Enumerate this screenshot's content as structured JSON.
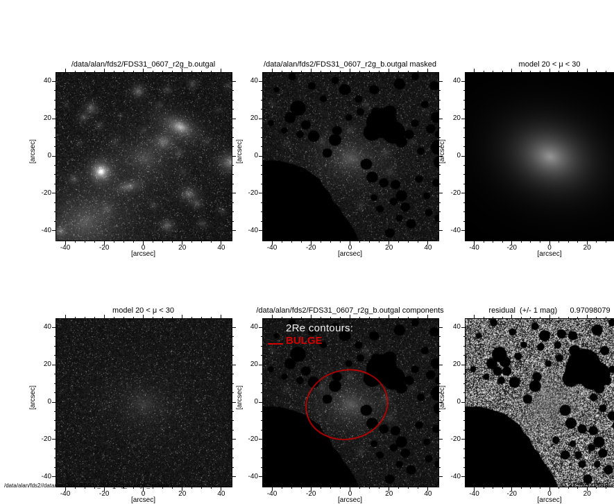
{
  "figure": {
    "footer_path": "/data/alan/fds2//data/alan/fds2/FDS31_0607_r2g_b.outgal_residual2",
    "timestamp": "Mon Nov 11 21:59:33 2019",
    "background": "#ffffff",
    "annotation_red": "#d40000"
  },
  "masks_common": {
    "circles": [
      [
        16,
        18,
        8
      ],
      [
        22,
        13,
        6
      ],
      [
        11,
        13,
        4.5
      ],
      [
        26,
        8,
        3
      ],
      [
        30,
        12,
        2.5
      ],
      [
        20,
        24,
        3.5
      ],
      [
        13,
        24,
        2.5
      ],
      [
        -27,
        26,
        4
      ],
      [
        -31,
        21,
        3
      ],
      [
        -23,
        17,
        2.5
      ],
      [
        -19,
        11,
        3
      ],
      [
        -26,
        12,
        2
      ],
      [
        -8,
        9,
        3.2
      ],
      [
        -7,
        14,
        2.5
      ],
      [
        -12,
        2,
        2.5
      ],
      [
        -3,
        36,
        3
      ],
      [
        -8,
        41,
        2
      ],
      [
        4,
        31,
        2
      ],
      [
        12,
        36,
        2.5
      ],
      [
        25,
        39,
        3
      ],
      [
        33,
        43,
        2
      ],
      [
        43,
        38,
        2.5
      ],
      [
        -14,
        31,
        1.8
      ],
      [
        -20,
        38,
        2
      ],
      [
        -30,
        43,
        2
      ],
      [
        -38,
        36,
        1.5
      ],
      [
        44,
        21,
        3
      ],
      [
        41,
        15,
        2.5
      ],
      [
        45,
        5,
        4
      ],
      [
        46,
        -3,
        3.5
      ],
      [
        38,
        28,
        2
      ],
      [
        36,
        3,
        2
      ],
      [
        33,
        18,
        2
      ],
      [
        45,
        12,
        2
      ],
      [
        8,
        -4,
        3
      ],
      [
        11,
        -11,
        3
      ],
      [
        17,
        -14,
        2.5
      ],
      [
        23,
        -15,
        2.5
      ],
      [
        26,
        -21,
        3
      ],
      [
        22,
        -24,
        2
      ],
      [
        28,
        -27,
        2.5
      ],
      [
        15,
        -28,
        2
      ],
      [
        31,
        -36,
        2.5
      ],
      [
        40,
        -30,
        2
      ],
      [
        35,
        -12,
        2
      ],
      [
        44,
        -14,
        2.2
      ],
      [
        20,
        -41,
        2.5
      ],
      [
        12,
        -22,
        1.8
      ],
      [
        25,
        -33,
        1.8
      ],
      [
        39,
        -21,
        1.8
      ],
      [
        45,
        -33,
        2
      ],
      [
        5,
        24,
        2
      ],
      [
        -1,
        21,
        1.8
      ],
      [
        -34,
        14,
        1.7
      ],
      [
        -41,
        18,
        1.6
      ]
    ],
    "polygons": [
      [
        [
          -45,
          -2
        ],
        [
          -37,
          -2
        ],
        [
          -30,
          -4
        ],
        [
          -24,
          -6
        ],
        [
          -20,
          -9
        ],
        [
          -16,
          -12
        ],
        [
          -14,
          -16
        ],
        [
          -11,
          -19
        ],
        [
          -9,
          -24
        ],
        [
          -6,
          -27
        ],
        [
          -4,
          -31
        ],
        [
          -1,
          -35
        ],
        [
          1,
          -38
        ],
        [
          3,
          -42
        ],
        [
          4,
          -45
        ],
        [
          -45,
          -45
        ]
      ]
    ]
  },
  "chart_data": [
    {
      "type": "heatmap",
      "panel": "observed",
      "title": "/data/alan/fds2/FDS31_0607_r2g_b.outgal",
      "xlabel": "[arcsec]",
      "ylabel": "[arcsec]",
      "xlim": [
        -45,
        45
      ],
      "ylim": [
        -45,
        45
      ],
      "x_ticks": [
        -40,
        -20,
        0,
        20,
        40
      ],
      "y_ticks": [
        -40,
        -20,
        0,
        20,
        40
      ],
      "minor_tick_step": 5,
      "render": {
        "noise": "dark",
        "seed": 101,
        "sources": [
          [
            -30,
            -35,
            70,
            17,
            13,
            25,
            1.1
          ],
          [
            0,
            -1,
            38,
            13,
            10,
            -10,
            1.2
          ],
          [
            0,
            -1,
            20,
            4.5,
            4,
            0,
            1.4
          ],
          [
            -22,
            -8,
            225,
            2.3,
            2.3,
            0,
            1.1
          ],
          [
            -22,
            -8,
            45,
            5.5,
            5.5,
            0,
            1.6
          ],
          [
            18,
            16,
            110,
            7,
            3.6,
            -28,
            1.15
          ],
          [
            19,
            16,
            70,
            2.6,
            2.2,
            -28,
            1.3
          ],
          [
            10,
            8,
            85,
            3.8,
            3.2,
            0,
            1.2
          ],
          [
            45,
            -3,
            120,
            4.5,
            3.5,
            0,
            1.2
          ],
          [
            -8,
            -16,
            80,
            4.5,
            2.2,
            12,
            1.25
          ],
          [
            -27,
            26,
            75,
            2.4,
            2.4,
            0,
            1.3
          ],
          [
            -31,
            21,
            55,
            2,
            2,
            0,
            1.3
          ],
          [
            -23,
            17,
            40,
            1.7,
            1.7,
            0,
            1.3
          ],
          [
            -3,
            35,
            85,
            2.4,
            2.4,
            0,
            1.3
          ],
          [
            12,
            36,
            45,
            1.7,
            1.7,
            0,
            1.3
          ],
          [
            25,
            39,
            50,
            1.9,
            1.9,
            0,
            1.3
          ],
          [
            43,
            38,
            40,
            1.6,
            1.6,
            0,
            1.3
          ],
          [
            23,
            -20,
            85,
            3,
            2.6,
            0,
            1.2
          ],
          [
            27,
            -25,
            55,
            2,
            2,
            0,
            1.3
          ],
          [
            12,
            -37,
            75,
            2.6,
            2.3,
            0,
            1.25
          ],
          [
            30,
            -36,
            45,
            1.8,
            1.8,
            0,
            1.3
          ],
          [
            40,
            -29,
            40,
            1.6,
            1.6,
            0,
            1.3
          ],
          [
            -36,
            -12,
            50,
            2,
            2,
            0,
            1.3
          ],
          [
            -43,
            -40,
            65,
            2.3,
            2.3,
            0,
            1.3
          ],
          [
            5,
            -26,
            35,
            1.6,
            1.6,
            0,
            1.3
          ],
          [
            -15,
            8,
            30,
            1.6,
            1.6,
            0,
            1.4
          ],
          [
            8,
            28,
            32,
            1.6,
            1.6,
            0,
            1.4
          ],
          [
            32,
            8,
            28,
            1.5,
            1.5,
            0,
            1.4
          ],
          [
            -33,
            7,
            26,
            1.5,
            1.5,
            0,
            1.4
          ],
          [
            18,
            2,
            35,
            2,
            2,
            0,
            1.4
          ],
          [
            38,
            25,
            26,
            1.5,
            1.5,
            0,
            1.4
          ],
          [
            -40,
            28,
            26,
            1.5,
            1.5,
            0,
            1.4
          ],
          [
            0,
            14,
            26,
            1.7,
            1.7,
            0,
            1.5
          ],
          [
            -19,
            -28,
            30,
            2.5,
            2.5,
            0,
            1.3
          ],
          [
            20,
            -8,
            30,
            1.8,
            1.8,
            0,
            1.4
          ],
          [
            -12,
            22,
            24,
            1.5,
            1.5,
            0,
            1.4
          ]
        ]
      }
    },
    {
      "type": "heatmap",
      "panel": "masked",
      "title": "/data/alan/fds2/FDS31_0607_r2g_b.outgal masked",
      "xlabel": "[arcsec]",
      "ylabel": "[arcsec]",
      "xlim": [
        -45,
        45
      ],
      "ylim": [
        -45,
        45
      ],
      "x_ticks": [
        -40,
        -20,
        0,
        20,
        40
      ],
      "y_ticks": [
        -40,
        -20,
        0,
        20,
        40
      ],
      "minor_tick_step": 5,
      "render": {
        "noise": "dark",
        "seed": 202,
        "masks_ref": true,
        "sources": [
          [
            0,
            -1,
            48,
            13,
            10,
            -10,
            1.2
          ],
          [
            0,
            -1,
            24,
            4.5,
            4,
            0,
            1.4
          ],
          [
            -15,
            8,
            30,
            1.6,
            1.6,
            0,
            1.4
          ],
          [
            8,
            28,
            32,
            1.6,
            1.6,
            0,
            1.4
          ],
          [
            18,
            2,
            30,
            2,
            2,
            0,
            1.4
          ],
          [
            0,
            14,
            26,
            1.7,
            1.7,
            0,
            1.5
          ],
          [
            32,
            8,
            24,
            1.5,
            1.5,
            0,
            1.4
          ],
          [
            -33,
            7,
            24,
            1.5,
            1.5,
            0,
            1.4
          ],
          [
            38,
            25,
            22,
            1.5,
            1.5,
            0,
            1.4
          ],
          [
            -40,
            28,
            22,
            1.5,
            1.5,
            0,
            1.4
          ],
          [
            5,
            -26,
            30,
            1.6,
            1.6,
            0,
            1.3
          ],
          [
            20,
            -8,
            26,
            1.8,
            1.8,
            0,
            1.4
          ]
        ]
      }
    },
    {
      "type": "heatmap",
      "panel": "model-smooth",
      "title": "model 20 < μ < 30",
      "xlabel": "[arcsec]",
      "ylabel": "[arcsec]",
      "xlim": [
        -45,
        45
      ],
      "ylim": [
        -45,
        45
      ],
      "x_ticks": [
        -40,
        -20,
        0,
        20,
        40
      ],
      "y_ticks": [
        -40,
        -20,
        0,
        20,
        40
      ],
      "minor_tick_step": 5,
      "render": {
        "noise": "black",
        "seed": 303,
        "sources": [
          [
            0,
            0,
            150,
            15,
            11.5,
            -18,
            1.15
          ]
        ]
      }
    },
    {
      "type": "heatmap",
      "panel": "model-noise",
      "title": "model 20 < μ < 30",
      "xlabel": "[arcsec]",
      "ylabel": "[arcsec]",
      "xlim": [
        -45,
        45
      ],
      "ylim": [
        -45,
        45
      ],
      "x_ticks": [
        -40,
        -20,
        0,
        20,
        40
      ],
      "y_ticks": [
        -40,
        -20,
        0,
        20,
        40
      ],
      "minor_tick_step": 5,
      "render": {
        "noise": "dark",
        "seed": 404,
        "sources": [
          [
            0,
            -1,
            26,
            13,
            10,
            -10,
            1.2
          ],
          [
            0,
            -1,
            12,
            4.5,
            4,
            0,
            1.4
          ]
        ]
      }
    },
    {
      "type": "heatmap",
      "panel": "components",
      "title": "/data/alan/fds2/FDS31_0607_r2g_b.outgal components",
      "xlabel": "[arcsec]",
      "ylabel": "[arcsec]",
      "xlim": [
        -45,
        45
      ],
      "ylim": [
        -45,
        45
      ],
      "x_ticks": [
        -40,
        -20,
        0,
        20,
        40
      ],
      "y_ticks": [
        -40,
        -20,
        0,
        20,
        40
      ],
      "minor_tick_step": 5,
      "overlay": {
        "heading": "2Re contours:",
        "legend_label": "BULGE",
        "heading_color": "#f2f2f2",
        "legend_color": "#d40000"
      },
      "render": {
        "noise": "dark",
        "seed": 202,
        "masks_ref": true,
        "sources": [
          [
            0,
            -1,
            48,
            13,
            10,
            -10,
            1.2
          ],
          [
            0,
            -1,
            24,
            4.5,
            4,
            0,
            1.4
          ],
          [
            -15,
            8,
            30,
            1.6,
            1.6,
            0,
            1.4
          ],
          [
            8,
            28,
            32,
            1.6,
            1.6,
            0,
            1.4
          ],
          [
            18,
            2,
            30,
            2,
            2,
            0,
            1.4
          ],
          [
            0,
            14,
            26,
            1.7,
            1.7,
            0,
            1.5
          ],
          [
            32,
            8,
            24,
            1.5,
            1.5,
            0,
            1.4
          ],
          [
            -33,
            7,
            24,
            1.5,
            1.5,
            0,
            1.4
          ],
          [
            38,
            25,
            22,
            1.5,
            1.5,
            0,
            1.4
          ],
          [
            -40,
            28,
            22,
            1.5,
            1.5,
            0,
            1.4
          ],
          [
            5,
            -26,
            30,
            1.6,
            1.6,
            0,
            1.3
          ],
          [
            20,
            -8,
            26,
            1.8,
            1.8,
            0,
            1.4
          ]
        ],
        "contour": {
          "cx": -2,
          "cy": -1,
          "rx": 21,
          "ry": 18.5,
          "rot": -12,
          "color": "#d40000"
        }
      }
    },
    {
      "type": "heatmap",
      "panel": "residual",
      "title": "residual  (+/- 1 mag)      0.97098079",
      "stat_value": "0.97098079",
      "xlabel": "[arcsec]",
      "ylabel": "[arcsec]",
      "xlim": [
        -45,
        45
      ],
      "ylim": [
        -45,
        45
      ],
      "x_ticks": [
        -40,
        -20,
        0,
        20,
        40
      ],
      "y_ticks": [
        -40,
        -20,
        0,
        20,
        40
      ],
      "minor_tick_step": 5,
      "render": {
        "noise": "bw",
        "seed": 606,
        "masks_ref": true,
        "center_smooth": 0.5,
        "extra_circles": [
          [
            18,
            20,
            9
          ],
          [
            25,
            15,
            7
          ],
          [
            13,
            28,
            3
          ],
          [
            46,
            -8,
            5
          ],
          [
            41,
            -2,
            3
          ],
          [
            -24,
            22,
            3
          ],
          [
            -28,
            17,
            2.5
          ],
          [
            6,
            37,
            2.5
          ],
          [
            -5,
            30,
            2
          ],
          [
            10,
            16,
            2.5
          ],
          [
            3,
            -20,
            2
          ],
          [
            8,
            -28,
            2.5
          ],
          [
            17,
            -33,
            2
          ],
          [
            28,
            -3,
            2
          ],
          [
            33,
            -7,
            2.5
          ],
          [
            23,
            3,
            2
          ],
          [
            29,
            28,
            2.5
          ],
          [
            37,
            33,
            2
          ],
          [
            -17,
            25,
            2
          ]
        ],
        "sources": []
      }
    }
  ]
}
